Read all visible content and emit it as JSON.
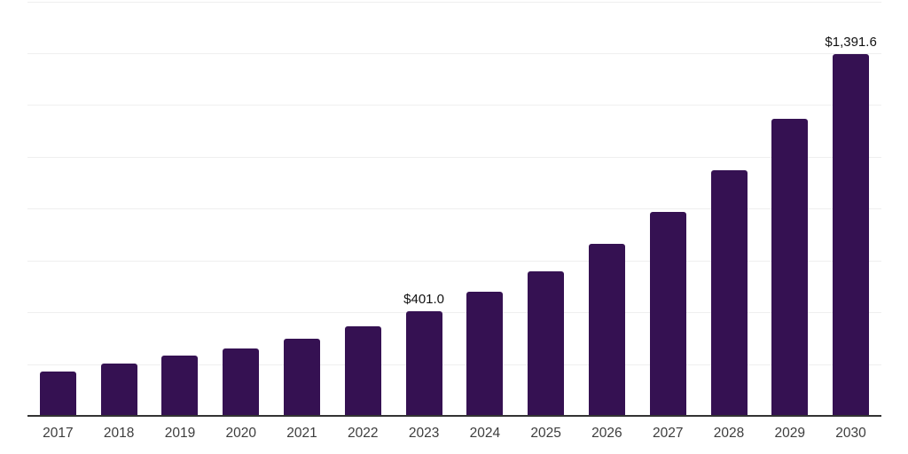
{
  "chart_data": {
    "type": "bar",
    "title": "",
    "xlabel": "",
    "ylabel": "",
    "categories": [
      "2017",
      "2018",
      "2019",
      "2020",
      "2021",
      "2022",
      "2023",
      "2024",
      "2025",
      "2026",
      "2027",
      "2028",
      "2029",
      "2030"
    ],
    "values": [
      169,
      197,
      231,
      256,
      295,
      342,
      401.0,
      475,
      555,
      659,
      785,
      944,
      1144,
      1391.6
    ],
    "data_labels": {
      "2023": "$401.0",
      "2030": "$1,391.6"
    },
    "ylim": [
      0,
      1600
    ],
    "gridline_interval": 200,
    "grid": true,
    "legend_position": "none",
    "bar_color": "#351152",
    "gridline_color": "#efefef",
    "axis_line_color": "#333333",
    "tick_label_color": "#3d3d3d",
    "value_label_color": "#111111"
  }
}
